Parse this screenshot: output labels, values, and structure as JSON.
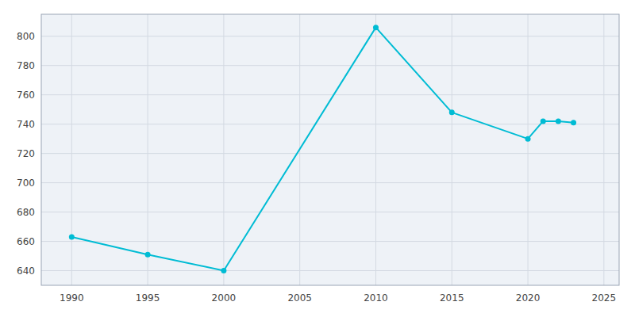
{
  "chart_data": {
    "type": "line",
    "x": [
      1990,
      1995,
      2000,
      2010,
      2015,
      2020,
      2021,
      2022,
      2023
    ],
    "values": [
      663,
      651,
      640,
      806,
      748,
      730,
      742,
      742,
      741
    ],
    "color": "#00bcd4",
    "marker": "circle",
    "xlim": [
      1988,
      2026
    ],
    "ylim": [
      630,
      815
    ],
    "xticks": [
      1990,
      1995,
      2000,
      2005,
      2010,
      2015,
      2020,
      2025
    ],
    "yticks": [
      640,
      660,
      680,
      700,
      720,
      740,
      760,
      780,
      800
    ],
    "grid": true
  }
}
